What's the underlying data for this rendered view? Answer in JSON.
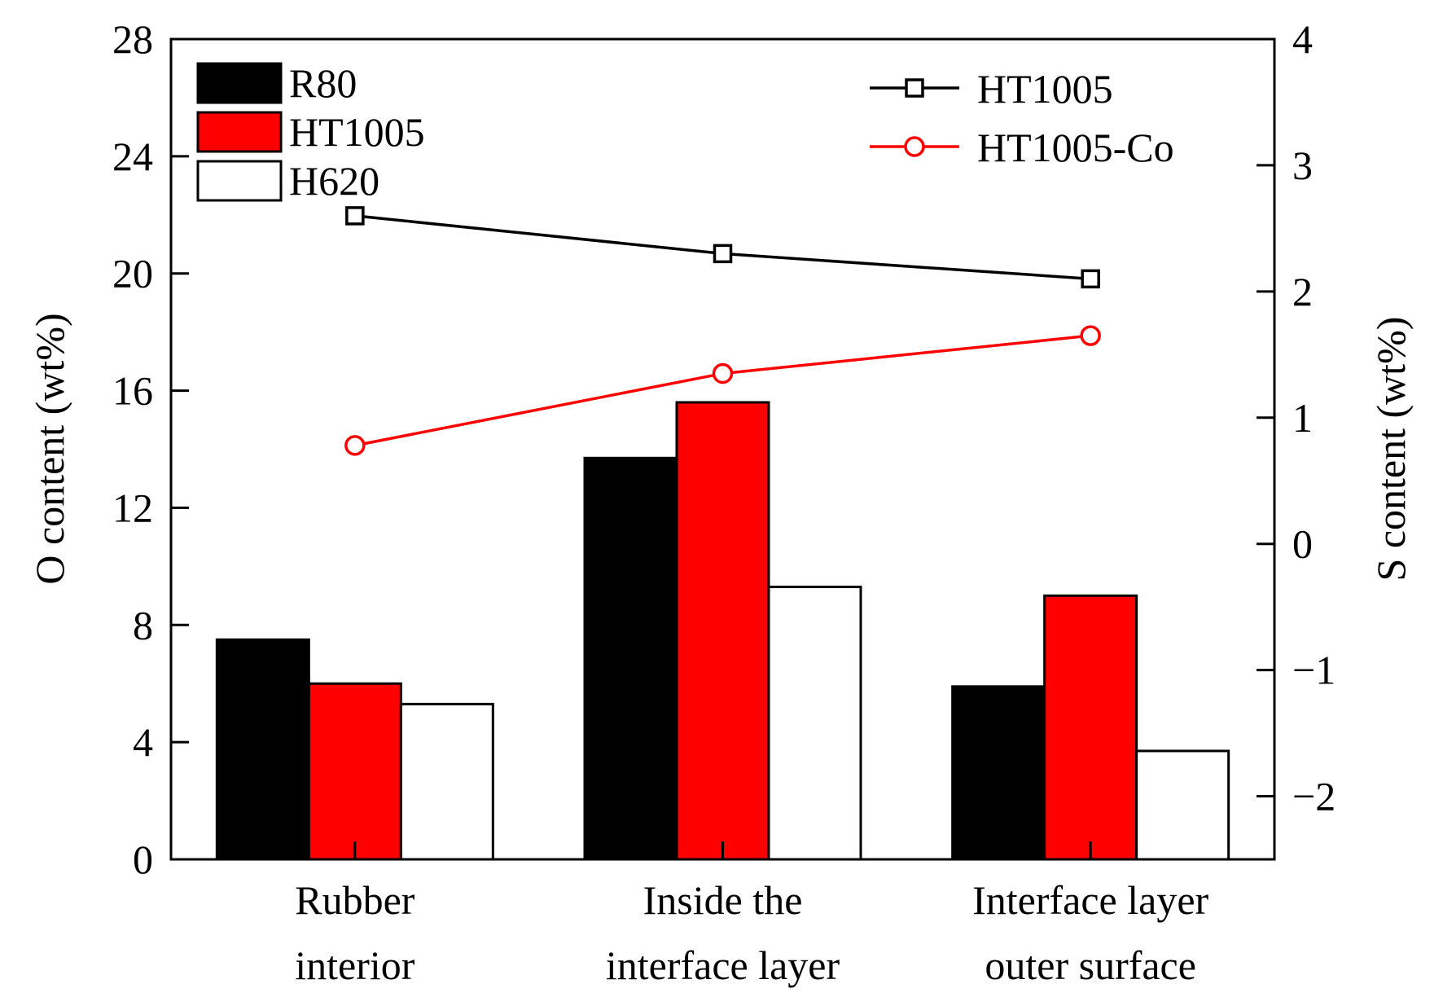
{
  "chart_data": {
    "type": "bar",
    "categories": [
      [
        "Rubber",
        "interior"
      ],
      [
        "Inside the",
        "interface layer"
      ],
      [
        "Interface layer",
        "outer surface"
      ]
    ],
    "bar_series": [
      {
        "name": "R80",
        "values": [
          7.5,
          13.7,
          5.9
        ],
        "fill": "#000000"
      },
      {
        "name": "HT1005",
        "values": [
          6.0,
          15.6,
          9.0
        ],
        "fill": "#ff0000"
      },
      {
        "name": "H620",
        "values": [
          5.3,
          9.3,
          3.7
        ],
        "fill": "#ffffff"
      }
    ],
    "line_series": [
      {
        "name": "HT1005",
        "values": [
          2.6,
          2.3,
          2.1
        ],
        "color": "#000000",
        "marker": "square"
      },
      {
        "name": "HT1005-Co",
        "values": [
          0.78,
          1.35,
          1.65
        ],
        "color": "#ff0000",
        "marker": "circle"
      }
    ],
    "ylabel": "O content (wt%)",
    "y2label": "S content (wt%)",
    "ylim": [
      0,
      28
    ],
    "yticks": [
      0,
      4,
      8,
      12,
      16,
      20,
      24,
      28
    ],
    "y2lim": [
      -2.5,
      4
    ],
    "y2ticks": [
      -2,
      -1,
      0,
      1,
      2,
      3,
      4
    ],
    "y2tick_labels": [
      "−2",
      "−1",
      "0",
      "1",
      "2",
      "3",
      "4"
    ],
    "grid": false,
    "legend_bars": "top-left",
    "legend_lines": "top-right"
  }
}
